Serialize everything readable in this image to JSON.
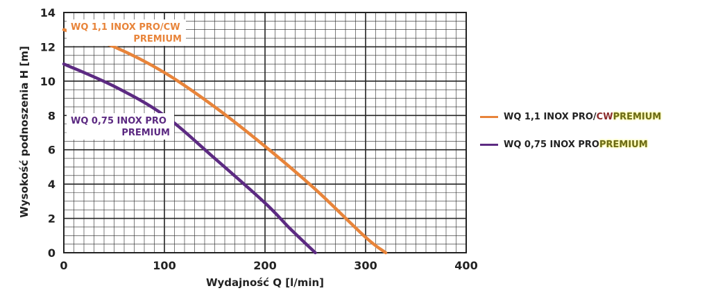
{
  "chart_data": {
    "type": "line",
    "xlabel": "Wydajność Q [l/min]",
    "ylabel": "Wysokość podnoszenia H [m]",
    "xlim": [
      0,
      400
    ],
    "ylim": [
      0,
      14
    ],
    "x_ticks": [
      "0",
      "100",
      "200",
      "300",
      "400"
    ],
    "y_ticks": [
      "0",
      "2",
      "4",
      "6",
      "8",
      "10",
      "12",
      "14"
    ],
    "grid": true,
    "legend_position": "right",
    "series": [
      {
        "name": "WQ 1,1 INOX PRO/CW PREMIUM",
        "color": "#e8843a",
        "x": [
          0,
          50,
          100,
          150,
          200,
          250,
          300,
          320
        ],
        "y": [
          13,
          12,
          10.5,
          8.5,
          6.2,
          3.7,
          0.9,
          0
        ]
      },
      {
        "name": "WQ 0,75 INOX PRO PREMIUM",
        "color": "#5c2a82",
        "x": [
          0,
          50,
          100,
          150,
          200,
          225,
          250
        ],
        "y": [
          11,
          9.7,
          8,
          5.5,
          2.9,
          1.4,
          0
        ]
      }
    ],
    "callouts": [
      {
        "line1": "WQ 1,1 INOX PRO/CW",
        "line2": "PREMIUM"
      },
      {
        "line1": "WQ 0,75 INOX PRO",
        "line2": "PREMIUM"
      }
    ]
  },
  "legend": [
    {
      "prefix": "WQ 1,1 INOX PRO/",
      "accent": "CW",
      "suffix": " PREMIUM",
      "color": "#e8843a",
      "accent_color": "#8b2a2a"
    },
    {
      "prefix": "WQ 0,75 INOX PRO ",
      "accent": "",
      "suffix": "PREMIUM",
      "color": "#5c2a82",
      "accent_color": "#5c2a82"
    }
  ],
  "colors": {
    "grid": "#222222",
    "text": "#222222",
    "premium_text": "#6b6a1a",
    "label_1": "#e8843a",
    "label_2": "#5c2a82"
  }
}
